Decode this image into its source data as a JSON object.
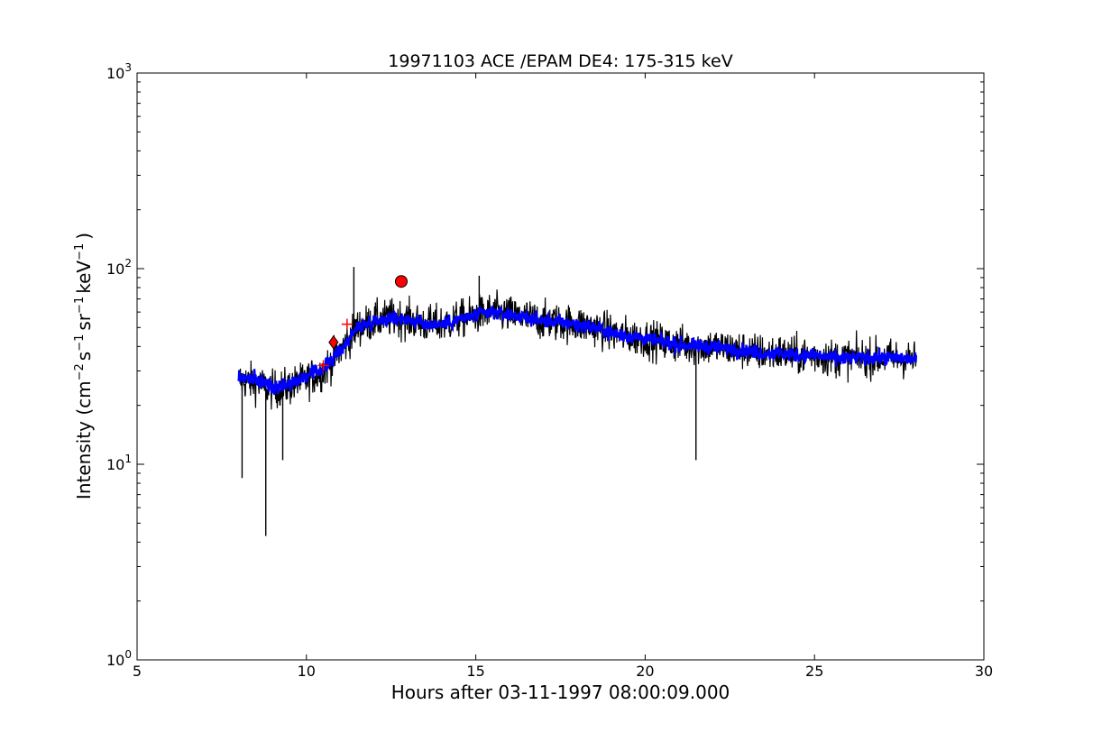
{
  "chart_data": {
    "type": "line",
    "title": "19971103 ACE /EPAM DE4: 175-315 keV",
    "xlabel": "Hours after 03-11-1997 08:00:09.000",
    "ylabel": "Intensity (cm⁻² s⁻¹ sr⁻¹ keV⁻¹ )",
    "ylabel_parts": {
      "pre": "Intensity (cm",
      "sup1": "−2",
      "s": "s",
      "sup2": "−1",
      "sr": "sr",
      "sup3": "−1",
      "kev": "keV",
      "sup4": "−1",
      "post": ")"
    },
    "xlim": [
      5,
      30
    ],
    "ylim": [
      1,
      1000
    ],
    "yscale": "log",
    "x_ticks": [
      "5",
      "10",
      "15",
      "20",
      "25",
      "30"
    ],
    "y_ticks": [
      {
        "base": "10",
        "exp": "0"
      },
      {
        "base": "10",
        "exp": "1"
      },
      {
        "base": "10",
        "exp": "2"
      },
      {
        "base": "10",
        "exp": "3"
      }
    ],
    "grid": false,
    "series": [
      {
        "style": "raw-black",
        "color": "#000000",
        "x": [
          8.0,
          8.5,
          9.0,
          9.5,
          10.0,
          10.5,
          11.0,
          11.5,
          12.0,
          12.5,
          13.0,
          13.5,
          14.0,
          14.5,
          15.0,
          15.5,
          16.0,
          16.5,
          17.0,
          17.5,
          18.0,
          18.5,
          19.0,
          19.5,
          20.0,
          20.5,
          21.0,
          21.5,
          22.0,
          22.5,
          23.0,
          23.5,
          24.0,
          24.5,
          25.0,
          25.5,
          26.0,
          26.5,
          27.0,
          27.5,
          28.0
        ],
        "values": [
          27,
          26,
          24,
          25,
          27,
          30,
          38,
          50,
          54,
          56,
          55,
          52,
          52,
          55,
          58,
          60,
          58,
          56,
          54,
          53,
          52,
          50,
          47,
          45,
          44,
          42,
          41,
          40,
          40,
          39,
          38,
          37,
          37,
          36,
          36,
          35,
          35,
          35,
          35,
          35,
          34
        ],
        "extremes": [
          {
            "x": 8.1,
            "y": 8.5
          },
          {
            "x": 8.8,
            "y": 4.3
          },
          {
            "x": 9.3,
            "y": 10.5
          },
          {
            "x": 11.4,
            "y": 102
          },
          {
            "x": 15.1,
            "y": 92
          },
          {
            "x": 21.5,
            "y": 10.5
          }
        ]
      },
      {
        "style": "smoothed-blue",
        "color": "#0000ff",
        "x": [
          8.0,
          8.5,
          9.0,
          9.5,
          10.0,
          10.5,
          11.0,
          11.5,
          12.0,
          12.5,
          13.0,
          13.5,
          14.0,
          14.5,
          15.0,
          15.5,
          16.0,
          16.5,
          17.0,
          17.5,
          18.0,
          18.5,
          19.0,
          19.5,
          20.0,
          20.5,
          21.0,
          21.5,
          22.0,
          22.5,
          23.0,
          23.5,
          24.0,
          24.5,
          25.0,
          25.5,
          26.0,
          26.5,
          27.0,
          27.5,
          28.0
        ],
        "values": [
          28,
          27,
          25,
          26,
          28,
          31,
          38,
          50,
          54,
          56,
          55,
          52,
          52,
          55,
          58,
          60,
          58,
          56,
          54,
          53,
          52,
          50,
          47,
          45,
          44,
          42,
          41,
          40,
          40,
          39,
          38,
          37,
          37,
          36,
          36,
          35,
          35,
          35,
          35,
          35,
          34
        ]
      }
    ],
    "markers": [
      {
        "shape": "circle",
        "x": 12.8,
        "y": 86,
        "color": "#ff0000"
      },
      {
        "shape": "diamond",
        "x": 10.8,
        "y": 42,
        "color": "#ff0000"
      },
      {
        "shape": "plus",
        "x": 10.5,
        "y": 32,
        "color": "#ff0000"
      },
      {
        "shape": "plus",
        "x": 11.2,
        "y": 52,
        "color": "#ff0000"
      }
    ]
  }
}
